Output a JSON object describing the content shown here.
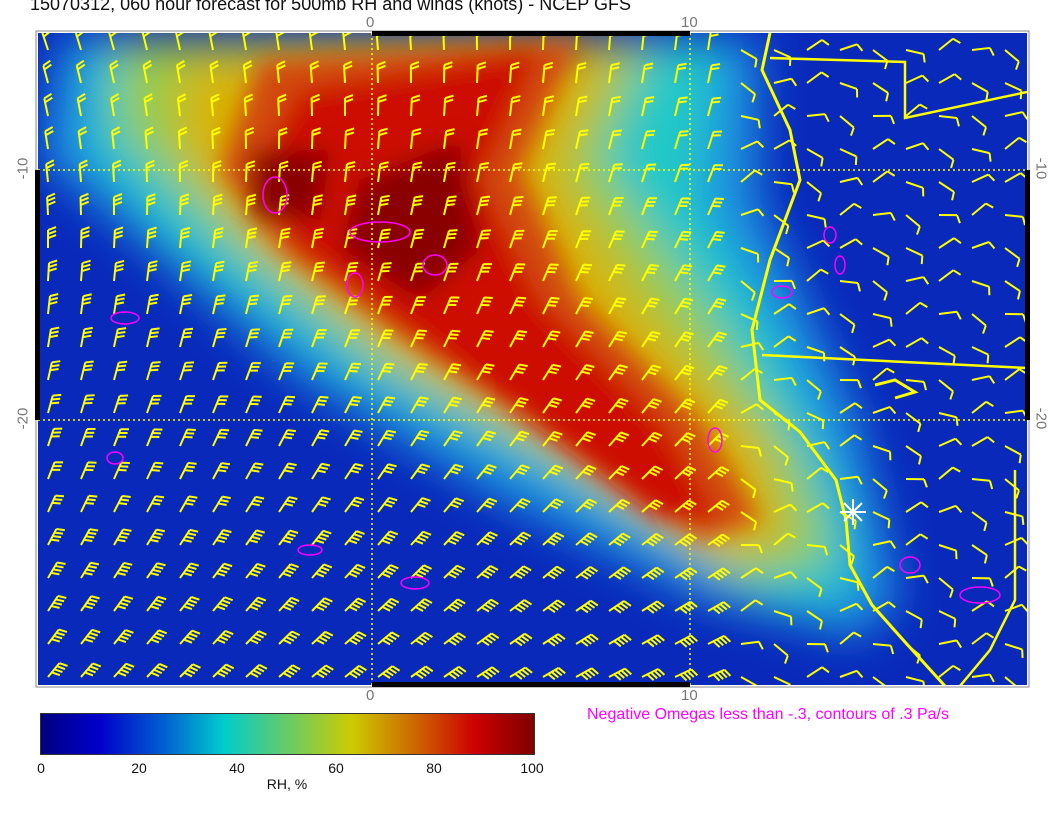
{
  "title": "15070312, 060 hour forecast for 500mb RH and winds (knots) - NCEP GFS",
  "axes": {
    "x_ticks": [
      "0",
      "10"
    ],
    "y_ticks": [
      "-10",
      "-20"
    ]
  },
  "colorbar": {
    "label": "RH, %",
    "ticks": [
      "0",
      "20",
      "40",
      "60",
      "80",
      "100"
    ],
    "range": [
      0,
      100
    ],
    "colors": [
      "#00007f",
      "#0000cc",
      "#00cccc",
      "#cccc00",
      "#cc0000",
      "#7f0000"
    ]
  },
  "omega_note": "Negative Omegas less than -.3, contours of .3 Pa/s",
  "colors": {
    "wind_barbs": "#ffff00",
    "coastline": "#ffff00",
    "omega_contours": "#ff00ff",
    "marker": "#ffffff"
  }
}
